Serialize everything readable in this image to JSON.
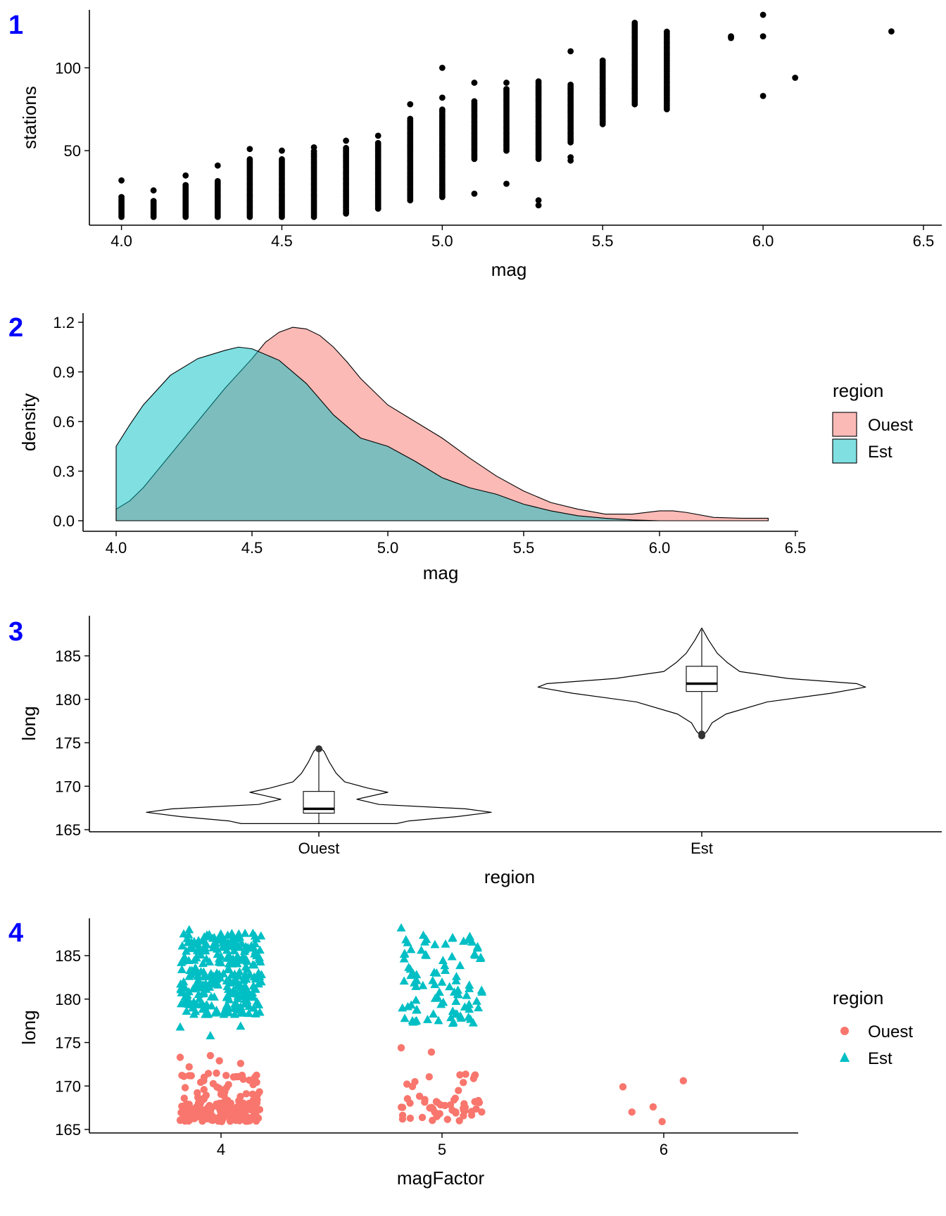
{
  "colors": {
    "ouest": "#F8766D",
    "est": "#00BFC4",
    "panel_tag": "#0000FF",
    "axis": "#000000"
  },
  "chart_data": [
    {
      "tag": "1",
      "type": "scatter",
      "xlabel": "mag",
      "ylabel": "stations",
      "xlim": [
        3.9,
        6.5
      ],
      "ylim": [
        5,
        135
      ],
      "xticks": [
        "4.0",
        "4.5",
        "5.0",
        "5.5",
        "6.0",
        "6.5"
      ],
      "yticks": [
        "50",
        "100"
      ],
      "columns": [
        {
          "x": 4.0,
          "min": 10,
          "max": 22,
          "extra": [
            32
          ]
        },
        {
          "x": 4.1,
          "min": 10,
          "max": 20,
          "extra": [
            26
          ]
        },
        {
          "x": 4.2,
          "min": 10,
          "max": 30,
          "extra": [
            35
          ]
        },
        {
          "x": 4.3,
          "min": 10,
          "max": 32,
          "extra": [
            41
          ]
        },
        {
          "x": 4.4,
          "min": 10,
          "max": 45,
          "extra": [
            51
          ]
        },
        {
          "x": 4.5,
          "min": 10,
          "max": 46,
          "extra": [
            50
          ]
        },
        {
          "x": 4.6,
          "min": 10,
          "max": 50,
          "extra": [
            52
          ]
        },
        {
          "x": 4.7,
          "min": 12,
          "max": 52,
          "extra": [
            56
          ]
        },
        {
          "x": 4.8,
          "min": 15,
          "max": 55,
          "extra": [
            59
          ]
        },
        {
          "x": 4.9,
          "min": 20,
          "max": 70,
          "extra": [
            78
          ]
        },
        {
          "x": 5.0,
          "min": 22,
          "max": 75,
          "extra": [
            82,
            100
          ]
        },
        {
          "x": 5.1,
          "min": 45,
          "max": 80,
          "extra": [
            24,
            91
          ]
        },
        {
          "x": 5.2,
          "min": 50,
          "max": 88,
          "extra": [
            30,
            91
          ]
        },
        {
          "x": 5.3,
          "min": 45,
          "max": 93,
          "extra": [
            17,
            20
          ]
        },
        {
          "x": 5.4,
          "min": 55,
          "max": 90,
          "extra": [
            44,
            46,
            110
          ]
        },
        {
          "x": 5.5,
          "min": 66,
          "max": 105,
          "extra": []
        },
        {
          "x": 5.6,
          "min": 78,
          "max": 128,
          "extra": []
        },
        {
          "x": 5.7,
          "min": 75,
          "max": 122,
          "extra": []
        }
      ],
      "points": [
        {
          "x": 5.9,
          "y": 118
        },
        {
          "x": 5.9,
          "y": 119
        },
        {
          "x": 6.0,
          "y": 132
        },
        {
          "x": 6.0,
          "y": 119
        },
        {
          "x": 6.0,
          "y": 83
        },
        {
          "x": 6.1,
          "y": 94
        },
        {
          "x": 6.4,
          "y": 122
        }
      ]
    },
    {
      "tag": "2",
      "type": "area",
      "xlabel": "mag",
      "ylabel": "density",
      "xlim": [
        3.87,
        6.52
      ],
      "ylim": [
        -0.06,
        1.24
      ],
      "xticks": [
        "4.0",
        "4.5",
        "5.0",
        "5.5",
        "6.0",
        "6.5"
      ],
      "yticks": [
        "0.0",
        "0.3",
        "0.6",
        "0.9",
        "1.2"
      ],
      "legend": {
        "title": "region",
        "entries": [
          "Ouest",
          "Est"
        ],
        "position": "right"
      },
      "series": [
        {
          "name": "Ouest",
          "color": "#F8766D",
          "x": [
            4.0,
            4.05,
            4.1,
            4.2,
            4.3,
            4.4,
            4.5,
            4.55,
            4.6,
            4.65,
            4.7,
            4.75,
            4.8,
            4.85,
            4.9,
            5.0,
            5.1,
            5.2,
            5.3,
            5.4,
            5.5,
            5.6,
            5.7,
            5.8,
            5.9,
            6.0,
            6.05,
            6.1,
            6.2,
            6.3,
            6.4
          ],
          "y": [
            0.07,
            0.12,
            0.2,
            0.4,
            0.6,
            0.8,
            0.98,
            1.08,
            1.14,
            1.17,
            1.16,
            1.12,
            1.05,
            0.96,
            0.86,
            0.7,
            0.6,
            0.5,
            0.38,
            0.27,
            0.18,
            0.11,
            0.07,
            0.04,
            0.04,
            0.06,
            0.06,
            0.05,
            0.02,
            0.015,
            0.015
          ]
        },
        {
          "name": "Est",
          "color": "#00BFC4",
          "x": [
            4.0,
            4.05,
            4.1,
            4.2,
            4.3,
            4.4,
            4.45,
            4.5,
            4.6,
            4.7,
            4.8,
            4.9,
            5.0,
            5.1,
            5.2,
            5.3,
            5.4,
            5.5,
            5.6,
            5.7,
            5.8,
            5.9,
            6.0
          ],
          "y": [
            0.45,
            0.58,
            0.7,
            0.88,
            0.98,
            1.03,
            1.05,
            1.04,
            0.97,
            0.83,
            0.64,
            0.5,
            0.45,
            0.36,
            0.26,
            0.2,
            0.16,
            0.1,
            0.06,
            0.03,
            0.015,
            0.005,
            0.0
          ]
        }
      ]
    },
    {
      "tag": "3",
      "type": "violin",
      "xlabel": "region",
      "ylabel": "long",
      "ylim": [
        164.8,
        189.5
      ],
      "yticks": [
        "165",
        "170",
        "175",
        "180",
        "185"
      ],
      "categories": [
        "Ouest",
        "Est"
      ],
      "groups": [
        {
          "name": "Ouest",
          "range": [
            165.7,
            174.6
          ],
          "profile": [
            [
              165.7,
              0.45
            ],
            [
              166.0,
              0.52
            ],
            [
              166.5,
              0.8
            ],
            [
              167.0,
              1.0
            ],
            [
              167.4,
              0.85
            ],
            [
              167.9,
              0.35
            ],
            [
              168.5,
              0.22
            ],
            [
              169.3,
              0.4
            ],
            [
              169.8,
              0.28
            ],
            [
              170.5,
              0.15
            ],
            [
              171.5,
              0.1
            ],
            [
              172.8,
              0.06
            ],
            [
              174.0,
              0.03
            ],
            [
              174.6,
              0.0
            ]
          ],
          "box": {
            "q1": 166.9,
            "median": 167.4,
            "q3": 169.4,
            "lo": 165.7,
            "hi": 174.2
          },
          "outliers": [
            174.3
          ]
        },
        {
          "name": "Est",
          "range": [
            175.7,
            188.2
          ],
          "profile": [
            [
              175.7,
              0.0
            ],
            [
              176.3,
              0.03
            ],
            [
              177.3,
              0.06
            ],
            [
              178.3,
              0.14
            ],
            [
              179.7,
              0.38
            ],
            [
              180.7,
              0.75
            ],
            [
              181.4,
              0.95
            ],
            [
              181.8,
              0.9
            ],
            [
              182.4,
              0.5
            ],
            [
              183.2,
              0.22
            ],
            [
              184.2,
              0.15
            ],
            [
              185.3,
              0.09
            ],
            [
              186.8,
              0.04
            ],
            [
              188.2,
              0.0
            ]
          ],
          "box": {
            "q1": 180.9,
            "median": 181.8,
            "q3": 183.8,
            "lo": 176.3,
            "hi": 188.0
          },
          "outliers": [
            175.8,
            176.0
          ]
        }
      ]
    },
    {
      "tag": "4",
      "type": "scatter",
      "xlabel": "magFactor",
      "ylabel": "long",
      "categories": [
        "4",
        "5",
        "6"
      ],
      "ylim": [
        164.8,
        189.0
      ],
      "yticks": [
        "165",
        "170",
        "175",
        "180",
        "185"
      ],
      "legend": {
        "title": "region",
        "entries": [
          "Ouest",
          "Est"
        ],
        "position": "right"
      },
      "groups": [
        {
          "category": "4",
          "region": "Est",
          "n": 300,
          "ymin": 178.2,
          "ymax": 187.6,
          "extra": [
            176.8,
            175.8,
            176.9,
            188.0
          ]
        },
        {
          "category": "4",
          "region": "Ouest",
          "n": 190,
          "ymin": 165.9,
          "ymax": 171.7,
          "extra": [
            173.3,
            173.5,
            172.6,
            172.2,
            172.9
          ]
        },
        {
          "category": "5",
          "region": "Est",
          "n": 95,
          "ymin": 177.2,
          "ymax": 187.4,
          "extra": [
            188.2
          ]
        },
        {
          "category": "5",
          "region": "Ouest",
          "n": 55,
          "ymin": 166.0,
          "ymax": 172.5,
          "extra": [
            174.4,
            173.9
          ]
        },
        {
          "category": "6",
          "region": "Ouest",
          "n": 0,
          "ymin": 166.0,
          "ymax": 170.7,
          "extra": [
            169.9,
            167.6,
            170.6,
            167.0,
            165.9
          ]
        }
      ]
    }
  ]
}
